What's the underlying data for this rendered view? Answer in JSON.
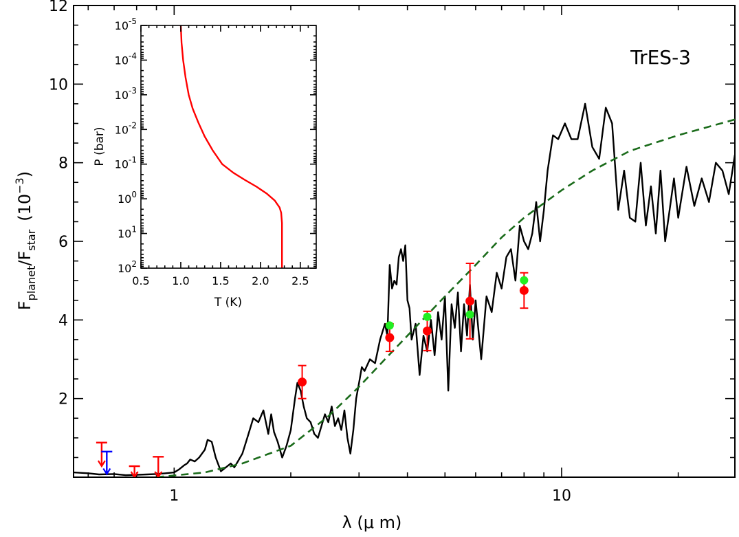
{
  "chart_data": [
    {
      "type": "line",
      "annotation": "TrES-3",
      "xlabel": "λ (μ m)",
      "ylabel_main": "F",
      "ylabel_sub1": "planet",
      "ylabel_slash": "/F",
      "ylabel_sub2": "star",
      "ylabel_unit": "(10",
      "ylabel_exp": "−3",
      "ylabel_close": ")",
      "xscale": "log",
      "xlim": [
        0.55,
        28
      ],
      "ylim": [
        0,
        12
      ],
      "xticks": [
        1,
        10
      ],
      "xtick_labels": [
        "1",
        "10"
      ],
      "yticks": [
        2,
        4,
        6,
        8,
        10,
        12
      ],
      "ytick_labels": [
        "2",
        "4",
        "6",
        "8",
        "10",
        "12"
      ],
      "model_spectrum": {
        "color": "#000000",
        "x": [
          0.55,
          0.6,
          0.64,
          0.7,
          0.75,
          0.8,
          0.85,
          0.9,
          0.95,
          1.0,
          1.03,
          1.06,
          1.08,
          1.1,
          1.13,
          1.16,
          1.2,
          1.22,
          1.25,
          1.28,
          1.32,
          1.36,
          1.4,
          1.43,
          1.46,
          1.5,
          1.55,
          1.6,
          1.65,
          1.7,
          1.75,
          1.78,
          1.81,
          1.85,
          1.9,
          1.95,
          2.0,
          2.05,
          2.08,
          2.12,
          2.16,
          2.2,
          2.25,
          2.3,
          2.35,
          2.4,
          2.45,
          2.5,
          2.55,
          2.6,
          2.65,
          2.7,
          2.75,
          2.8,
          2.85,
          2.9,
          2.95,
          3.0,
          3.05,
          3.1,
          3.2,
          3.3,
          3.4,
          3.5,
          3.55,
          3.6,
          3.65,
          3.7,
          3.75,
          3.8,
          3.85,
          3.9,
          3.95,
          4.0,
          4.05,
          4.1,
          4.2,
          4.3,
          4.4,
          4.5,
          4.6,
          4.7,
          4.8,
          4.9,
          5.0,
          5.1,
          5.2,
          5.3,
          5.4,
          5.5,
          5.6,
          5.7,
          5.8,
          5.9,
          6.0,
          6.2,
          6.4,
          6.6,
          6.8,
          7.0,
          7.2,
          7.4,
          7.6,
          7.8,
          8.0,
          8.2,
          8.4,
          8.6,
          8.8,
          9.0,
          9.2,
          9.5,
          9.8,
          10.2,
          10.6,
          11.0,
          11.5,
          12.0,
          12.5,
          13.0,
          13.5,
          14.0,
          14.5,
          15.0,
          15.5,
          16.0,
          16.5,
          17.0,
          17.5,
          18.0,
          18.5,
          19.0,
          19.5,
          20.0,
          21.0,
          22.0,
          23.0,
          24.0,
          25.0,
          26.0,
          27.0,
          28.0
        ],
        "y": [
          0.12,
          0.1,
          0.07,
          0.08,
          0.05,
          0.06,
          0.07,
          0.08,
          0.1,
          0.12,
          0.2,
          0.3,
          0.35,
          0.45,
          0.4,
          0.5,
          0.7,
          0.95,
          0.9,
          0.5,
          0.15,
          0.25,
          0.35,
          0.25,
          0.4,
          0.6,
          1.05,
          1.5,
          1.4,
          1.7,
          1.1,
          1.6,
          1.15,
          0.9,
          0.5,
          0.8,
          1.2,
          2.0,
          2.4,
          2.2,
          1.8,
          1.5,
          1.4,
          1.1,
          1.0,
          1.3,
          1.6,
          1.4,
          1.8,
          1.3,
          1.5,
          1.2,
          1.7,
          1.0,
          0.6,
          1.2,
          2.0,
          2.4,
          2.8,
          2.7,
          3.0,
          2.9,
          3.5,
          3.9,
          3.6,
          5.4,
          4.8,
          5.0,
          4.9,
          5.6,
          5.8,
          5.5,
          5.9,
          4.5,
          4.3,
          3.5,
          3.9,
          2.6,
          3.6,
          3.2,
          4.0,
          3.1,
          4.2,
          3.5,
          4.6,
          2.2,
          4.4,
          3.8,
          4.7,
          3.2,
          4.4,
          3.6,
          4.9,
          3.5,
          4.5,
          3.0,
          4.6,
          4.2,
          5.2,
          4.8,
          5.6,
          5.8,
          5.0,
          6.4,
          6.0,
          5.8,
          6.2,
          7.0,
          6.0,
          6.8,
          7.8,
          8.7,
          8.6,
          9.0,
          8.6,
          8.6,
          9.5,
          8.4,
          8.1,
          9.4,
          9.0,
          6.8,
          7.8,
          6.6,
          6.5,
          8.0,
          6.4,
          7.4,
          6.2,
          7.8,
          6.0,
          6.8,
          7.6,
          6.6,
          7.9,
          6.9,
          7.6,
          7.0,
          8.0,
          7.8,
          7.2,
          8.2
        ]
      },
      "blackbody": {
        "color": "#1a6b1a",
        "dashed": true,
        "x": [
          0.9,
          1.2,
          1.5,
          2.0,
          2.5,
          3.0,
          3.5,
          4.0,
          5.0,
          6.0,
          7.0,
          8.0,
          10.0,
          12.0,
          15.0,
          20.0,
          28.0
        ],
        "y": [
          0.0,
          0.12,
          0.35,
          0.8,
          1.55,
          2.3,
          3.0,
          3.6,
          4.6,
          5.4,
          6.1,
          6.6,
          7.3,
          7.8,
          8.3,
          8.7,
          9.1
        ]
      },
      "observations_red": [
        {
          "x": 2.14,
          "y": 2.42,
          "err": 0.42
        },
        {
          "x": 3.6,
          "y": 3.55,
          "err": 0.35
        },
        {
          "x": 4.5,
          "y": 3.72,
          "err": 0.5
        },
        {
          "x": 5.8,
          "y": 4.48,
          "err": 0.96
        },
        {
          "x": 8.0,
          "y": 4.75,
          "err": 0.45
        }
      ],
      "observations_green": [
        {
          "x": 3.6,
          "y": 3.86
        },
        {
          "x": 4.5,
          "y": 4.08
        },
        {
          "x": 5.8,
          "y": 4.14
        },
        {
          "x": 8.0,
          "y": 5.01
        }
      ],
      "upper_limits_red": [
        {
          "x": 0.65,
          "top": 0.88,
          "bottom": 0.28
        },
        {
          "x": 0.79,
          "top": 0.28,
          "bottom": 0.0
        },
        {
          "x": 0.91,
          "top": 0.52,
          "bottom": 0.0
        }
      ],
      "upper_limits_blue": [
        {
          "x": 0.67,
          "top": 0.65,
          "bottom": 0.08
        }
      ],
      "colors": {
        "red": "#ff0000",
        "green": "#22ee22",
        "blue": "#0000ff"
      }
    },
    {
      "type": "line",
      "inset": true,
      "xlabel": "T (K)",
      "ylabel": "P (bar)",
      "xlim": [
        0.5,
        2.7
      ],
      "ylim": [
        2,
        -5
      ],
      "yscale": "log",
      "xtick_labels": [
        "0.5",
        "1.0",
        "1.5",
        "2.0",
        "2.5"
      ],
      "ytick_exponents": [
        "-5",
        "-4",
        "-3",
        "-2",
        "-1",
        "0",
        "1",
        "2"
      ],
      "ytick_base": "10",
      "profile": {
        "color": "#ff0000",
        "T": [
          1.0,
          1.01,
          1.03,
          1.06,
          1.1,
          1.15,
          1.22,
          1.3,
          1.4,
          1.52,
          1.66,
          1.8,
          1.95,
          2.08,
          2.18,
          2.24,
          2.26,
          2.27,
          2.27,
          2.27
        ],
        "logP": [
          -5.0,
          -4.5,
          -4.0,
          -3.5,
          -3.0,
          -2.6,
          -2.2,
          -1.8,
          -1.4,
          -1.0,
          -0.75,
          -0.55,
          -0.35,
          -0.15,
          0.05,
          0.25,
          0.4,
          0.7,
          1.3,
          2.0
        ]
      }
    }
  ]
}
